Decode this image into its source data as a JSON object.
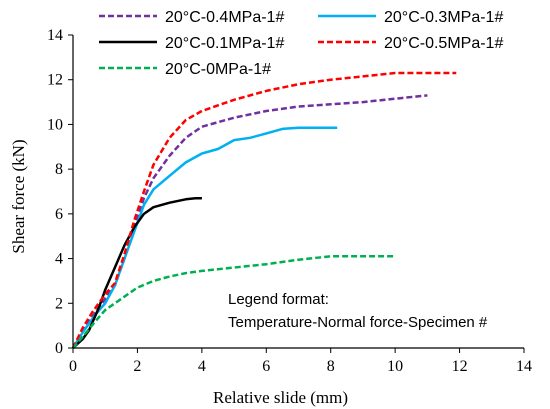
{
  "chart_data": {
    "type": "line",
    "xlabel": "Relative slide (mm)",
    "ylabel": "Shear force (kN)",
    "xlim": [
      0,
      14
    ],
    "ylim": [
      0,
      14
    ],
    "xticks": [
      0,
      2,
      4,
      6,
      8,
      10,
      12,
      14
    ],
    "yticks": [
      0,
      2,
      4,
      6,
      8,
      10,
      12,
      14
    ],
    "grid": false,
    "legend_position": "top",
    "annotation": [
      "Legend format:",
      "Temperature-Normal force-Specimen #"
    ],
    "series": [
      {
        "name": "20°C-0.4MPa-1#",
        "color": "#7030A0",
        "dash": "dashed",
        "points": [
          [
            0,
            0
          ],
          [
            0.3,
            0.8
          ],
          [
            0.7,
            1.6
          ],
          [
            1.0,
            2.2
          ],
          [
            1.3,
            2.8
          ],
          [
            1.6,
            4.0
          ],
          [
            1.9,
            5.4
          ],
          [
            2.2,
            6.7
          ],
          [
            2.5,
            7.6
          ],
          [
            3.0,
            8.6
          ],
          [
            3.5,
            9.4
          ],
          [
            4.0,
            9.9
          ],
          [
            5.0,
            10.3
          ],
          [
            6.0,
            10.6
          ],
          [
            7.0,
            10.8
          ],
          [
            8.0,
            10.9
          ],
          [
            9.0,
            11.0
          ],
          [
            10.0,
            11.15
          ],
          [
            11.0,
            11.3
          ]
        ]
      },
      {
        "name": "20°C-0.3MPa-1#",
        "color": "#00B0F0",
        "dash": "solid",
        "points": [
          [
            0,
            0
          ],
          [
            0.3,
            0.7
          ],
          [
            0.7,
            1.5
          ],
          [
            1.0,
            2.0
          ],
          [
            1.3,
            2.8
          ],
          [
            1.6,
            4.0
          ],
          [
            1.9,
            5.2
          ],
          [
            2.2,
            6.4
          ],
          [
            2.5,
            7.1
          ],
          [
            3.0,
            7.7
          ],
          [
            3.5,
            8.3
          ],
          [
            4.0,
            8.7
          ],
          [
            4.5,
            8.9
          ],
          [
            5.0,
            9.3
          ],
          [
            5.5,
            9.4
          ],
          [
            6.0,
            9.6
          ],
          [
            6.5,
            9.8
          ],
          [
            7.0,
            9.85
          ],
          [
            7.5,
            9.85
          ],
          [
            8.2,
            9.85
          ]
        ]
      },
      {
        "name": "20°C-0.1MPa-1#",
        "color": "#000000",
        "dash": "solid",
        "points": [
          [
            0,
            0
          ],
          [
            0.3,
            0.4
          ],
          [
            0.5,
            0.8
          ],
          [
            0.8,
            1.8
          ],
          [
            1.0,
            2.6
          ],
          [
            1.3,
            3.6
          ],
          [
            1.6,
            4.6
          ],
          [
            1.9,
            5.4
          ],
          [
            2.2,
            6.0
          ],
          [
            2.5,
            6.3
          ],
          [
            3.0,
            6.5
          ],
          [
            3.5,
            6.65
          ],
          [
            3.8,
            6.7
          ],
          [
            4.0,
            6.7
          ]
        ]
      },
      {
        "name": "20°C-0.5MPa-1#",
        "color": "#FF0000",
        "dash": "dashed",
        "points": [
          [
            0,
            0
          ],
          [
            0.3,
            0.9
          ],
          [
            0.6,
            1.6
          ],
          [
            1.0,
            2.4
          ],
          [
            1.3,
            2.9
          ],
          [
            1.6,
            4.2
          ],
          [
            1.9,
            5.7
          ],
          [
            2.2,
            7.0
          ],
          [
            2.5,
            8.2
          ],
          [
            3.0,
            9.4
          ],
          [
            3.5,
            10.2
          ],
          [
            4.0,
            10.6
          ],
          [
            5.0,
            11.1
          ],
          [
            6.0,
            11.5
          ],
          [
            7.0,
            11.8
          ],
          [
            8.0,
            12.0
          ],
          [
            9.0,
            12.15
          ],
          [
            10.0,
            12.3
          ],
          [
            11.0,
            12.3
          ],
          [
            11.9,
            12.3
          ]
        ]
      },
      {
        "name": "20°C-0MPa-1#",
        "color": "#00B050",
        "dash": "dashed",
        "points": [
          [
            0,
            0
          ],
          [
            0.3,
            0.5
          ],
          [
            0.7,
            1.2
          ],
          [
            1.0,
            1.7
          ],
          [
            1.5,
            2.2
          ],
          [
            2.0,
            2.7
          ],
          [
            2.5,
            3.0
          ],
          [
            3.0,
            3.2
          ],
          [
            3.5,
            3.35
          ],
          [
            4.0,
            3.45
          ],
          [
            5.0,
            3.6
          ],
          [
            6.0,
            3.75
          ],
          [
            7.0,
            3.95
          ],
          [
            8.0,
            4.1
          ],
          [
            9.0,
            4.1
          ],
          [
            10.0,
            4.1
          ]
        ]
      }
    ]
  }
}
